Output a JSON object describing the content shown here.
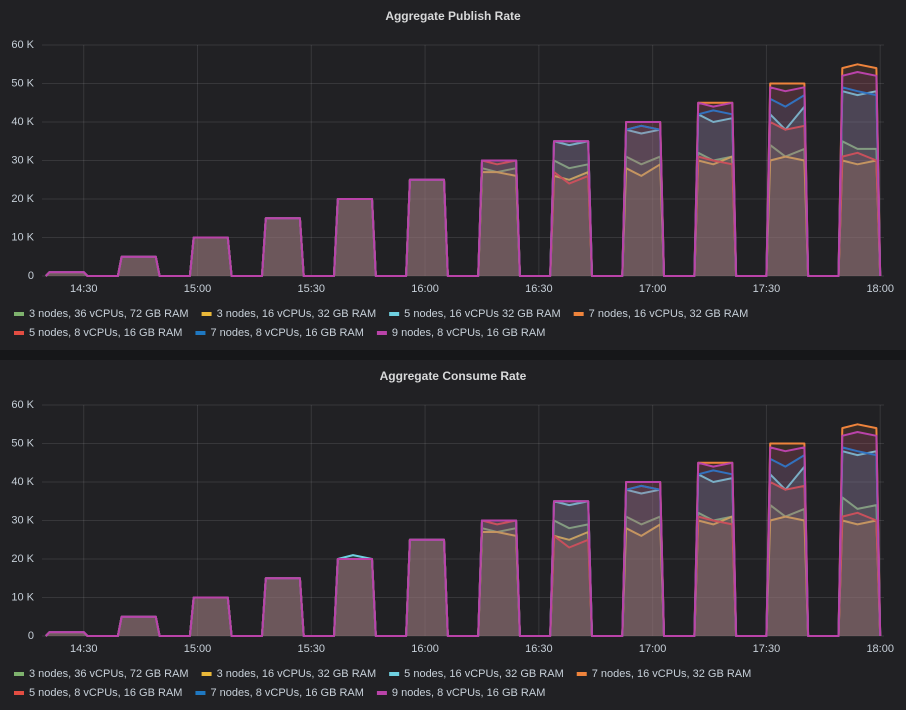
{
  "chart_data": [
    {
      "type": "line",
      "title": "Aggregate Publish Rate",
      "x": [
        "14:20",
        "14:21",
        "14:25",
        "14:30",
        "14:31",
        "14:39",
        "14:40",
        "14:44",
        "14:49",
        "14:50",
        "14:58",
        "14:59",
        "15:03",
        "15:08",
        "15:09",
        "15:17",
        "15:18",
        "15:22",
        "15:27",
        "15:28",
        "15:36",
        "15:37",
        "15:41",
        "15:46",
        "15:47",
        "15:55",
        "15:56",
        "16:00",
        "16:05",
        "16:06",
        "16:14",
        "16:15",
        "16:19",
        "16:24",
        "16:25",
        "16:33",
        "16:34",
        "16:38",
        "16:43",
        "16:44",
        "16:52",
        "16:53",
        "16:57",
        "17:02",
        "17:03",
        "17:11",
        "17:12",
        "17:16",
        "17:21",
        "17:22",
        "17:30",
        "17:31",
        "17:35",
        "17:40",
        "17:41",
        "17:49",
        "17:50",
        "17:54",
        "17:59",
        "18:00"
      ],
      "xlim": [
        "14:19",
        "18:01"
      ],
      "xticks": [
        "14:30",
        "15:00",
        "15:30",
        "16:00",
        "16:30",
        "17:00",
        "17:30",
        "18:00"
      ],
      "ylim": [
        0,
        60
      ],
      "yticks": [
        0,
        {
          "value": 10,
          "label": "10 K"
        },
        {
          "value": 20,
          "label": "20 K"
        },
        {
          "value": 30,
          "label": "30 K"
        },
        {
          "value": 40,
          "label": "40 K"
        },
        {
          "value": 50,
          "label": "50 K"
        },
        {
          "value": 60,
          "label": "60 K"
        }
      ],
      "grid": true,
      "series": [
        {
          "name": "3 nodes, 36 vCPUs, 72 GB RAM",
          "color": "#7eb26d",
          "values": [
            0,
            1,
            1,
            1,
            0,
            0,
            5,
            5,
            5,
            0,
            0,
            10,
            10,
            10,
            0,
            0,
            15,
            15,
            15,
            0,
            0,
            20,
            20,
            20,
            0,
            0,
            25,
            25,
            25,
            0,
            0,
            28,
            27,
            28,
            0,
            0,
            30,
            28,
            29,
            0,
            0,
            31,
            29,
            31,
            0,
            0,
            32,
            30,
            31,
            0,
            0,
            34,
            31,
            33,
            0,
            0,
            35,
            33,
            33,
            0
          ]
        },
        {
          "name": "3 nodes, 16 vCPUs, 32 GB RAM",
          "color": "#eab839",
          "values": [
            0,
            1,
            1,
            1,
            0,
            0,
            5,
            5,
            5,
            0,
            0,
            10,
            10,
            10,
            0,
            0,
            15,
            15,
            15,
            0,
            0,
            20,
            20,
            20,
            0,
            0,
            25,
            25,
            25,
            0,
            0,
            27,
            27,
            26,
            0,
            0,
            26,
            25,
            27,
            0,
            0,
            28,
            26,
            29,
            0,
            0,
            30,
            29,
            31,
            0,
            0,
            30,
            31,
            30,
            0,
            0,
            30,
            29,
            30,
            0
          ]
        },
        {
          "name": "5 nodes, 16 vCPUs 32 GB RAM",
          "color": "#6ed0e0",
          "values": [
            0,
            1,
            1,
            1,
            0,
            0,
            5,
            5,
            5,
            0,
            0,
            10,
            10,
            10,
            0,
            0,
            15,
            15,
            15,
            0,
            0,
            20,
            20,
            20,
            0,
            0,
            25,
            25,
            25,
            0,
            0,
            30,
            30,
            30,
            0,
            0,
            35,
            34,
            35,
            0,
            0,
            38,
            37,
            38,
            0,
            0,
            42,
            40,
            41,
            0,
            0,
            42,
            38,
            44,
            0,
            0,
            48,
            47,
            48,
            0
          ]
        },
        {
          "name": "7 nodes, 16 vCPUs, 32 GB RAM",
          "color": "#ef843c",
          "values": [
            0,
            1,
            1,
            1,
            0,
            0,
            5,
            5,
            5,
            0,
            0,
            10,
            10,
            10,
            0,
            0,
            15,
            15,
            15,
            0,
            0,
            20,
            20,
            20,
            0,
            0,
            25,
            25,
            25,
            0,
            0,
            30,
            30,
            30,
            0,
            0,
            35,
            35,
            35,
            0,
            0,
            40,
            40,
            40,
            0,
            0,
            45,
            45,
            45,
            0,
            0,
            50,
            50,
            50,
            0,
            0,
            54,
            55,
            54,
            0
          ]
        },
        {
          "name": "5 nodes, 8 vCPUs, 16 GB RAM",
          "color": "#e24d42",
          "values": [
            0,
            1,
            1,
            1,
            0,
            0,
            5,
            5,
            5,
            0,
            0,
            10,
            10,
            10,
            0,
            0,
            15,
            15,
            15,
            0,
            0,
            20,
            20,
            20,
            0,
            0,
            25,
            25,
            25,
            0,
            0,
            30,
            29,
            30,
            0,
            0,
            27,
            24,
            26,
            0,
            0,
            38,
            39,
            38,
            0,
            0,
            31,
            30,
            29,
            0,
            0,
            40,
            38,
            39,
            0,
            0,
            31,
            32,
            30,
            0
          ]
        },
        {
          "name": "7 nodes, 8 vCPUs, 16 GB RAM",
          "color": "#1f78c1",
          "values": [
            0,
            1,
            1,
            1,
            0,
            0,
            5,
            5,
            5,
            0,
            0,
            10,
            10,
            10,
            0,
            0,
            15,
            15,
            15,
            0,
            0,
            20,
            20,
            20,
            0,
            0,
            25,
            25,
            25,
            0,
            0,
            30,
            30,
            30,
            0,
            0,
            35,
            35,
            35,
            0,
            0,
            38,
            39,
            38,
            0,
            0,
            42,
            43,
            42,
            0,
            0,
            46,
            44,
            47,
            0,
            0,
            49,
            48,
            47,
            0
          ]
        },
        {
          "name": "9 nodes, 8 vCPUs, 16 GB RAM",
          "color": "#ba43a9",
          "values": [
            0,
            1,
            1,
            1,
            0,
            0,
            5,
            5,
            5,
            0,
            0,
            10,
            10,
            10,
            0,
            0,
            15,
            15,
            15,
            0,
            0,
            20,
            20,
            20,
            0,
            0,
            25,
            25,
            25,
            0,
            0,
            30,
            30,
            30,
            0,
            0,
            35,
            35,
            35,
            0,
            0,
            40,
            40,
            40,
            0,
            0,
            45,
            44,
            45,
            0,
            0,
            49,
            48,
            49,
            0,
            0,
            52,
            53,
            52,
            0
          ]
        }
      ]
    },
    {
      "type": "line",
      "title": "Aggregate Consume Rate",
      "x": [
        "14:20",
        "14:21",
        "14:25",
        "14:30",
        "14:31",
        "14:39",
        "14:40",
        "14:44",
        "14:49",
        "14:50",
        "14:58",
        "14:59",
        "15:03",
        "15:08",
        "15:09",
        "15:17",
        "15:18",
        "15:22",
        "15:27",
        "15:28",
        "15:36",
        "15:37",
        "15:41",
        "15:46",
        "15:47",
        "15:55",
        "15:56",
        "16:00",
        "16:05",
        "16:06",
        "16:14",
        "16:15",
        "16:19",
        "16:24",
        "16:25",
        "16:33",
        "16:34",
        "16:38",
        "16:43",
        "16:44",
        "16:52",
        "16:53",
        "16:57",
        "17:02",
        "17:03",
        "17:11",
        "17:12",
        "17:16",
        "17:21",
        "17:22",
        "17:30",
        "17:31",
        "17:35",
        "17:40",
        "17:41",
        "17:49",
        "17:50",
        "17:54",
        "17:59",
        "18:00"
      ],
      "xlim": [
        "14:19",
        "18:01"
      ],
      "xticks": [
        "14:30",
        "15:00",
        "15:30",
        "16:00",
        "16:30",
        "17:00",
        "17:30",
        "18:00"
      ],
      "ylim": [
        0,
        60
      ],
      "yticks": [
        0,
        {
          "value": 10,
          "label": "10 K"
        },
        {
          "value": 20,
          "label": "20 K"
        },
        {
          "value": 30,
          "label": "30 K"
        },
        {
          "value": 40,
          "label": "40 K"
        },
        {
          "value": 50,
          "label": "50 K"
        },
        {
          "value": 60,
          "label": "60 K"
        }
      ],
      "grid": true,
      "series": [
        {
          "name": "3 nodes, 36 vCPUs, 72 GB RAM",
          "color": "#7eb26d",
          "values": [
            0,
            1,
            1,
            1,
            0,
            0,
            5,
            5,
            5,
            0,
            0,
            10,
            10,
            10,
            0,
            0,
            15,
            15,
            15,
            0,
            0,
            20,
            20,
            20,
            0,
            0,
            25,
            25,
            25,
            0,
            0,
            28,
            27,
            28,
            0,
            0,
            30,
            28,
            29,
            0,
            0,
            31,
            29,
            31,
            0,
            0,
            32,
            30,
            31,
            0,
            0,
            34,
            31,
            33,
            0,
            0,
            36,
            33,
            34,
            0
          ]
        },
        {
          "name": "3 nodes, 16 vCPUs, 32 GB RAM",
          "color": "#eab839",
          "values": [
            0,
            1,
            1,
            1,
            0,
            0,
            5,
            5,
            5,
            0,
            0,
            10,
            10,
            10,
            0,
            0,
            15,
            15,
            15,
            0,
            0,
            20,
            20,
            20,
            0,
            0,
            25,
            25,
            25,
            0,
            0,
            27,
            27,
            26,
            0,
            0,
            26,
            25,
            27,
            0,
            0,
            28,
            26,
            29,
            0,
            0,
            30,
            29,
            31,
            0,
            0,
            30,
            31,
            30,
            0,
            0,
            30,
            29,
            30,
            0
          ]
        },
        {
          "name": "5 nodes, 16 vCPUs, 32 GB RAM",
          "color": "#6ed0e0",
          "values": [
            0,
            1,
            1,
            1,
            0,
            0,
            5,
            5,
            5,
            0,
            0,
            10,
            10,
            10,
            0,
            0,
            15,
            15,
            15,
            0,
            0,
            20,
            21,
            20,
            0,
            0,
            25,
            25,
            25,
            0,
            0,
            30,
            30,
            30,
            0,
            0,
            35,
            34,
            35,
            0,
            0,
            38,
            37,
            38,
            0,
            0,
            42,
            40,
            41,
            0,
            0,
            42,
            38,
            44,
            0,
            0,
            48,
            47,
            48,
            0
          ]
        },
        {
          "name": "7 nodes, 16 vCPUs, 32 GB RAM",
          "color": "#ef843c",
          "values": [
            0,
            1,
            1,
            1,
            0,
            0,
            5,
            5,
            5,
            0,
            0,
            10,
            10,
            10,
            0,
            0,
            15,
            15,
            15,
            0,
            0,
            20,
            20,
            20,
            0,
            0,
            25,
            25,
            25,
            0,
            0,
            30,
            30,
            30,
            0,
            0,
            35,
            35,
            35,
            0,
            0,
            40,
            40,
            40,
            0,
            0,
            45,
            45,
            45,
            0,
            0,
            50,
            50,
            50,
            0,
            0,
            54,
            55,
            54,
            0
          ]
        },
        {
          "name": "5 nodes, 8 vCPUs, 16 GB RAM",
          "color": "#e24d42",
          "values": [
            0,
            1,
            1,
            1,
            0,
            0,
            5,
            5,
            5,
            0,
            0,
            10,
            10,
            10,
            0,
            0,
            15,
            15,
            15,
            0,
            0,
            20,
            20,
            20,
            0,
            0,
            25,
            25,
            25,
            0,
            0,
            30,
            29,
            30,
            0,
            0,
            26,
            23,
            25,
            0,
            0,
            38,
            39,
            38,
            0,
            0,
            31,
            30,
            29,
            0,
            0,
            40,
            38,
            39,
            0,
            0,
            31,
            32,
            30,
            0
          ]
        },
        {
          "name": "7 nodes, 8 vCPUs, 16 GB RAM",
          "color": "#1f78c1",
          "values": [
            0,
            1,
            1,
            1,
            0,
            0,
            5,
            5,
            5,
            0,
            0,
            10,
            10,
            10,
            0,
            0,
            15,
            15,
            15,
            0,
            0,
            20,
            20,
            20,
            0,
            0,
            25,
            25,
            25,
            0,
            0,
            30,
            30,
            30,
            0,
            0,
            35,
            35,
            35,
            0,
            0,
            38,
            39,
            38,
            0,
            0,
            42,
            43,
            42,
            0,
            0,
            46,
            44,
            47,
            0,
            0,
            49,
            48,
            47,
            0
          ]
        },
        {
          "name": "9 nodes, 8 vCPUs, 16 GB RAM",
          "color": "#ba43a9",
          "values": [
            0,
            1,
            1,
            1,
            0,
            0,
            5,
            5,
            5,
            0,
            0,
            10,
            10,
            10,
            0,
            0,
            15,
            15,
            15,
            0,
            0,
            20,
            20,
            20,
            0,
            0,
            25,
            25,
            25,
            0,
            0,
            30,
            30,
            30,
            0,
            0,
            35,
            35,
            35,
            0,
            0,
            40,
            40,
            40,
            0,
            0,
            45,
            44,
            45,
            0,
            0,
            49,
            48,
            49,
            0,
            0,
            52,
            53,
            52,
            0
          ]
        }
      ]
    }
  ]
}
